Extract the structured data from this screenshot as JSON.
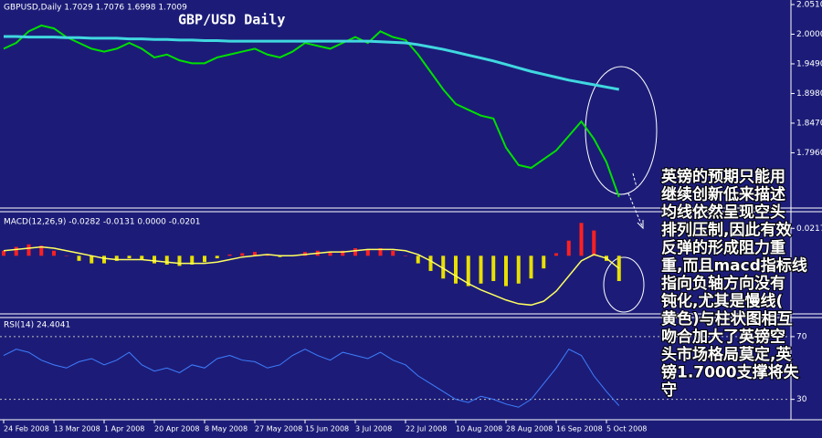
{
  "chart_data": [
    {
      "type": "line",
      "title": "GBP/USD Daily",
      "header": "GBPUSD,Daily  1.7029 1.7076 1.6998 1.7009",
      "series": [
        {
          "color": "#00e000",
          "values": [
            1.975,
            1.985,
            2.005,
            2.015,
            2.01,
            1.995,
            1.985,
            1.975,
            1.97,
            1.975,
            1.985,
            1.975,
            1.96,
            1.965,
            1.955,
            1.95,
            1.95,
            1.96,
            1.965,
            1.97,
            1.975,
            1.965,
            1.96,
            1.97,
            1.985,
            1.98,
            1.975,
            1.985,
            1.995,
            1.985,
            2.005,
            1.995,
            1.99,
            1.965,
            1.935,
            1.905,
            1.88,
            1.87,
            1.86,
            1.855,
            1.805,
            1.775,
            1.77,
            1.785,
            1.8,
            1.825,
            1.85,
            1.82,
            1.78,
            1.72
          ]
        },
        {
          "color": "#40d8e0",
          "values": [
            1.996,
            1.996,
            1.995,
            1.995,
            1.995,
            1.994,
            1.994,
            1.993,
            1.993,
            1.993,
            1.992,
            1.992,
            1.991,
            1.991,
            1.99,
            1.99,
            1.989,
            1.989,
            1.988,
            1.988,
            1.988,
            1.988,
            1.988,
            1.988,
            1.988,
            1.988,
            1.988,
            1.988,
            1.988,
            1.988,
            1.987,
            1.986,
            1.985,
            1.982,
            1.978,
            1.974,
            1.969,
            1.964,
            1.959,
            1.954,
            1.948,
            1.942,
            1.936,
            1.931,
            1.926,
            1.921,
            1.917,
            1.913,
            1.909,
            1.905
          ]
        }
      ],
      "ylim": [
        1.701,
        2.0588
      ],
      "yticks": [
        {
          "value": 2.051,
          "label": "2.0510"
        },
        {
          "value": 2.0,
          "label": "2.0000"
        },
        {
          "value": 1.949,
          "label": "1.9490"
        },
        {
          "value": 1.898,
          "label": "1.8980"
        },
        {
          "value": 1.847,
          "label": "1.8470"
        },
        {
          "value": 1.796,
          "label": "1.7960"
        }
      ]
    },
    {
      "type": "bar",
      "header": "MACD(12,26,9) -0.0282 -0.0131 0.0000 -0.0201",
      "positive_color": "#ff2020",
      "negative_color": "#e8e000",
      "values": [
        0.004,
        0.007,
        0.009,
        0.008,
        0.004,
        0.0,
        -0.004,
        -0.006,
        -0.006,
        -0.004,
        -0.002,
        -0.003,
        -0.006,
        -0.007,
        -0.008,
        -0.007,
        -0.005,
        -0.002,
        0.001,
        0.002,
        0.003,
        0.001,
        -0.001,
        0.0,
        0.003,
        0.004,
        0.003,
        0.004,
        0.006,
        0.005,
        0.006,
        0.004,
        0.0,
        -0.006,
        -0.012,
        -0.018,
        -0.022,
        -0.024,
        -0.022,
        -0.02,
        -0.024,
        -0.022,
        -0.018,
        -0.01,
        0.002,
        0.012,
        0.026,
        0.02,
        -0.004,
        -0.02
      ],
      "signal": {
        "color": "#ffff60",
        "values": [
          0.004,
          0.005,
          0.006,
          0.007,
          0.006,
          0.004,
          0.002,
          0.0,
          -0.002,
          -0.003,
          -0.003,
          -0.003,
          -0.004,
          -0.005,
          -0.006,
          -0.006,
          -0.006,
          -0.005,
          -0.003,
          -0.001,
          0.0,
          0.001,
          0.0,
          0.0,
          0.001,
          0.002,
          0.003,
          0.003,
          0.004,
          0.005,
          0.005,
          0.005,
          0.004,
          0.001,
          -0.004,
          -0.01,
          -0.016,
          -0.022,
          -0.027,
          -0.031,
          -0.035,
          -0.038,
          -0.039,
          -0.036,
          -0.028,
          -0.016,
          -0.004,
          0.001,
          -0.002,
          -0.01
        ]
      },
      "ylim": [
        -0.046,
        0.032
      ],
      "yticks": [
        0.0217
      ]
    },
    {
      "type": "line",
      "header": "RSI(14) 24.4041",
      "color": "#3f7fff",
      "categories": [
        "24 Feb 2008",
        null,
        null,
        null,
        "13 Mar 2008",
        null,
        null,
        null,
        "1 Apr 2008",
        null,
        null,
        null,
        "20 Apr 2008",
        null,
        null,
        null,
        "8 May 2008",
        null,
        null,
        null,
        "27 May 2008",
        null,
        null,
        null,
        "15 Jun 2008",
        null,
        null,
        null,
        "3 Jul 2008",
        null,
        null,
        null,
        "22 Jul 2008",
        null,
        null,
        null,
        "10 Aug 2008",
        null,
        null,
        null,
        "28 Aug 2008",
        null,
        null,
        null,
        "16 Sep 2008",
        null,
        null,
        null,
        "5 Oct 2008",
        null
      ],
      "values": [
        58,
        62,
        60,
        55,
        52,
        50,
        54,
        56,
        52,
        55,
        60,
        52,
        48,
        50,
        47,
        52,
        50,
        56,
        58,
        55,
        54,
        50,
        52,
        58,
        62,
        58,
        55,
        60,
        58,
        56,
        60,
        55,
        52,
        45,
        40,
        35,
        30,
        28,
        32,
        30,
        27,
        25,
        30,
        40,
        50,
        62,
        58,
        45,
        35,
        26
      ],
      "ylim": [
        17,
        81
      ],
      "yticks": [
        70,
        30
      ]
    }
  ],
  "annotation": {
    "lines": [
      "英镑的预期只能用",
      "继续创新低来描述",
      "均线依然呈现空头",
      "排列压制,因此有效",
      "反弹的形成阻力重",
      "重,而且macd指标线",
      "指向负轴方向没有",
      "钝化,尤其是慢线(",
      "黄色)与柱状图相互",
      "吻合加大了英镑空",
      "头市场格局莫定,英",
      "镑1.7000支撑将失",
      "守"
    ]
  }
}
